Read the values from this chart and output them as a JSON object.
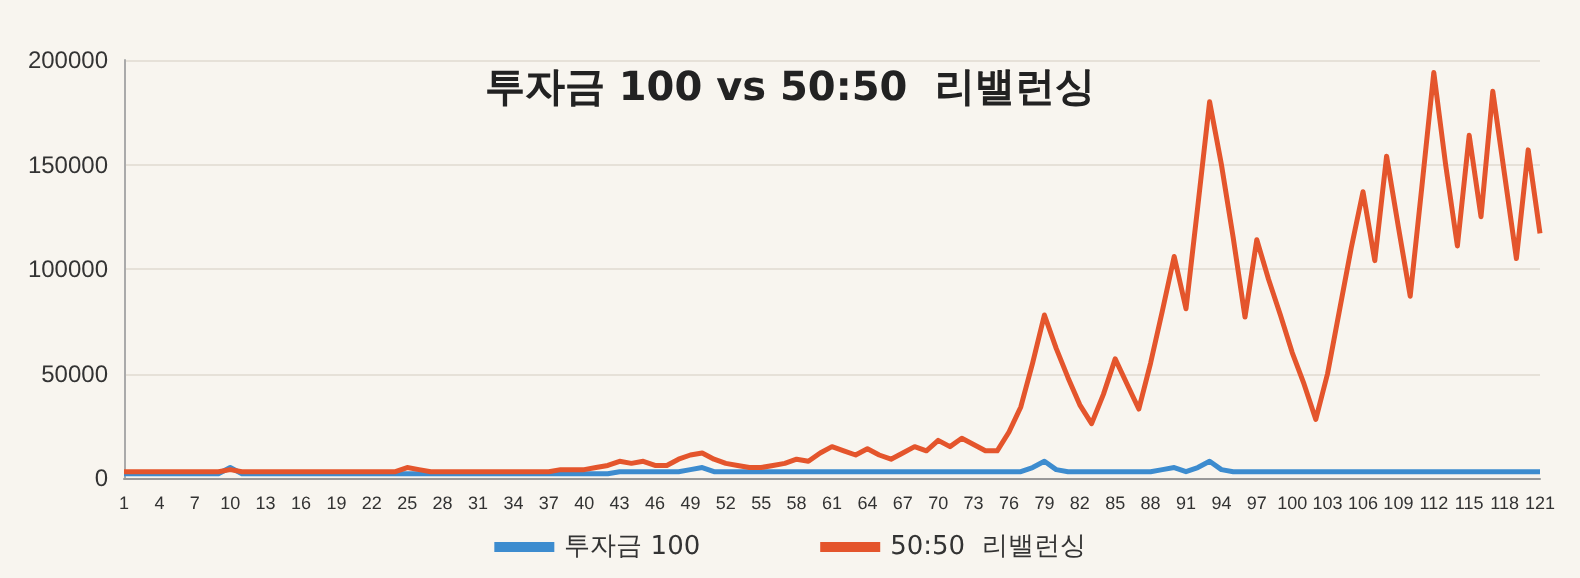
{
  "chart_data": {
    "type": "line",
    "title": "투자금 100 vs 50:50  리밸런싱",
    "categories": [
      "1",
      null,
      null,
      "4",
      null,
      null,
      "7",
      null,
      null,
      "10",
      null,
      null,
      "13",
      null,
      null,
      "16",
      null,
      null,
      "19",
      null,
      null,
      "22",
      null,
      null,
      "25",
      null,
      null,
      "28",
      null,
      null,
      "31",
      null,
      null,
      "34",
      null,
      null,
      "37",
      null,
      null,
      "40",
      null,
      null,
      "43",
      null,
      null,
      "46",
      null,
      null,
      "49",
      null,
      null,
      "52",
      null,
      null,
      "55",
      null,
      null,
      "58",
      null,
      null,
      "61",
      null,
      null,
      "64",
      null,
      null,
      "67",
      null,
      null,
      "70",
      null,
      null,
      "73",
      null,
      null,
      "76",
      null,
      null,
      "79",
      null,
      null,
      "82",
      null,
      null,
      "85",
      null,
      null,
      "88",
      null,
      null,
      "91",
      null,
      null,
      "94",
      null,
      null,
      "97",
      null,
      null,
      "100",
      null,
      null,
      "103",
      null,
      null,
      "106",
      null,
      null,
      "109",
      null,
      null,
      "112",
      null,
      null,
      "115",
      null,
      null,
      "118",
      null,
      null,
      "121"
    ],
    "series": [
      {
        "name": "투자금 100",
        "color": "#3d8ccf",
        "values": [
          2000,
          2000,
          2000,
          2000,
          2000,
          2000,
          2000,
          2000,
          2000,
          5000,
          2000,
          2000,
          2000,
          2000,
          2000,
          2000,
          2000,
          2000,
          2000,
          2000,
          2000,
          2000,
          2000,
          2000,
          2000,
          2000,
          2000,
          2000,
          2000,
          2000,
          2000,
          2000,
          2000,
          2000,
          2000,
          2000,
          2000,
          2000,
          2000,
          2000,
          2000,
          2000,
          3000,
          3000,
          3000,
          3000,
          3000,
          3000,
          4000,
          5000,
          3000,
          3000,
          3000,
          3000,
          3000,
          3000,
          3000,
          3000,
          3000,
          3000,
          3000,
          3000,
          3000,
          3000,
          3000,
          3000,
          3000,
          3000,
          3000,
          3000,
          3000,
          3000,
          3000,
          3000,
          3000,
          3000,
          3000,
          5000,
          8000,
          4000,
          3000,
          3000,
          3000,
          3000,
          3000,
          3000,
          3000,
          3000,
          4000,
          5000,
          3000,
          5000,
          8000,
          4000,
          3000,
          3000,
          3000,
          3000,
          3000,
          3000,
          3000,
          3000,
          3000,
          3000,
          3000,
          3000,
          3000,
          3000,
          3000,
          3000,
          3000,
          3000,
          3000,
          3000,
          3000,
          3000,
          3000,
          3000,
          3000,
          3000,
          3000
        ]
      },
      {
        "name": "50:50  리밸런싱",
        "color": "#e4552c",
        "values": [
          3000,
          3000,
          3000,
          3000,
          3000,
          3000,
          3000,
          3000,
          3000,
          4000,
          3000,
          3000,
          3000,
          3000,
          3000,
          3000,
          3000,
          3000,
          3000,
          3000,
          3000,
          3000,
          3000,
          3000,
          5000,
          4000,
          3000,
          3000,
          3000,
          3000,
          3000,
          3000,
          3000,
          3000,
          3000,
          3000,
          3000,
          4000,
          4000,
          4000,
          5000,
          6000,
          8000,
          7000,
          8000,
          6000,
          6000,
          9000,
          11000,
          12000,
          9000,
          7000,
          6000,
          5000,
          5000,
          6000,
          7000,
          9000,
          8000,
          12000,
          15000,
          13000,
          11000,
          14000,
          11000,
          9000,
          12000,
          15000,
          13000,
          18000,
          15000,
          19000,
          16000,
          13000,
          13000,
          22000,
          34000,
          55000,
          78000,
          62000,
          48000,
          35000,
          26000,
          40000,
          57000,
          45000,
          33000,
          55000,
          80000,
          106000,
          81000,
          130000,
          180000,
          150000,
          115000,
          77000,
          114000,
          95000,
          78000,
          60000,
          45000,
          28000,
          50000,
          80000,
          110000,
          137000,
          104000,
          154000,
          120000,
          87000,
          140000,
          194000,
          150000,
          111000,
          164000,
          125000,
          185000,
          145000,
          105000,
          157000,
          117000
        ]
      }
    ],
    "ylim": [
      0,
      200000
    ],
    "yticks": [
      0,
      50000,
      100000,
      150000,
      200000
    ],
    "grid": "y",
    "legend": "bottom",
    "marker": "none",
    "line_style": "solid"
  }
}
